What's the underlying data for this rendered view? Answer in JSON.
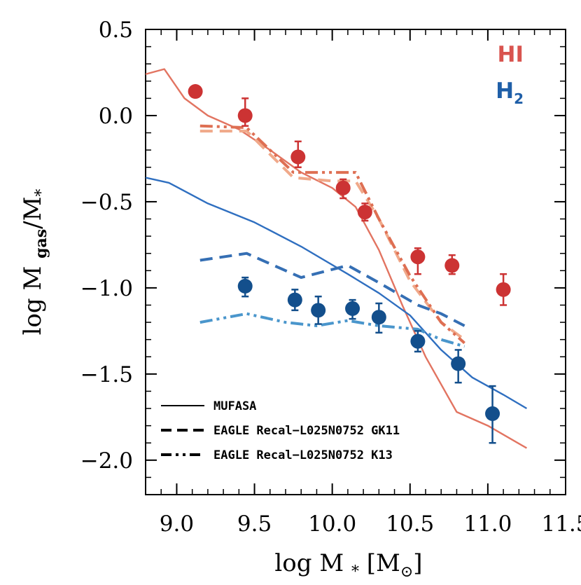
{
  "chart_data": {
    "type": "line",
    "xlabel": "log M<sub>*</sub> [M<sub>&#x2299;</sub>]",
    "xlabel_main": "log M",
    "xlabel_sub": "*",
    "xlabel_unit_open": "[M",
    "xlabel_unit_sub": "⊙",
    "xlabel_unit_close": "]",
    "ylabel_main": "log M",
    "ylabel_sub": "gas",
    "ylabel_tail": "/M",
    "ylabel_tail_sub": "*",
    "xlim": [
      8.8,
      11.5
    ],
    "ylim": [
      -2.2,
      0.5
    ],
    "x_ticks": [
      9.0,
      9.5,
      10.0,
      10.5,
      11.0,
      11.5
    ],
    "x_tick_labels": [
      "9.0",
      "9.5",
      "10.0",
      "10.5",
      "11.0",
      "11.5"
    ],
    "y_ticks": [
      0.5,
      0.0,
      -0.5,
      -1.0,
      -1.5,
      -2.0
    ],
    "y_tick_labels": [
      "0.5",
      "0.0",
      "−0.5",
      "−1.0",
      "−1.5",
      "−2.0"
    ],
    "grid": false,
    "legend_position": "bottom-left",
    "legend": [
      {
        "style": "solid",
        "label": "MUFASA"
      },
      {
        "style": "dashed",
        "label": "EAGLE Recal−L025N0752 GK11"
      },
      {
        "style": "dash-dot-dot",
        "label": "EAGLE Recal−L025N0752 K13"
      }
    ],
    "species_labels": [
      {
        "main": "HI",
        "sub": "",
        "color": "#d9544f"
      },
      {
        "main": "H",
        "sub": "2",
        "color": "#1f5fa8"
      }
    ],
    "colors": {
      "hi_points": "#cc3333",
      "h2_points": "#134f8c",
      "hi_mufasa": "#e27461",
      "hi_gk11": "#f0a98a",
      "hi_k13": "#de6f53",
      "h2_mufasa": "#2f6fc0",
      "h2_gk11": "#356fb4",
      "h2_k13": "#4a96cc"
    },
    "series": [
      {
        "id": "hi_mufasa",
        "kind": "line",
        "style": "solid",
        "color": "#e27461",
        "width": 2.4,
        "x": [
          8.8,
          8.92,
          9.05,
          9.2,
          9.4,
          9.6,
          9.8,
          10.0,
          10.15,
          10.3,
          10.45,
          10.6,
          10.8,
          11.0,
          11.25
        ],
        "y": [
          0.24,
          0.27,
          0.1,
          0.0,
          -0.08,
          -0.2,
          -0.33,
          -0.42,
          -0.53,
          -0.78,
          -1.1,
          -1.4,
          -1.72,
          -1.8,
          -1.93
        ]
      },
      {
        "id": "h2_mufasa",
        "kind": "line",
        "style": "solid",
        "color": "#2f6fc0",
        "width": 2.4,
        "x": [
          8.8,
          8.95,
          9.2,
          9.5,
          9.8,
          10.1,
          10.3,
          10.5,
          10.7,
          10.9,
          11.1,
          11.25
        ],
        "y": [
          -0.36,
          -0.39,
          -0.51,
          -0.62,
          -0.76,
          -0.92,
          -1.03,
          -1.16,
          -1.36,
          -1.52,
          -1.62,
          -1.7
        ]
      },
      {
        "id": "hi_gk11",
        "kind": "line",
        "style": "dashed",
        "color": "#f0a98a",
        "width": 4,
        "x": [
          9.15,
          9.45,
          9.75,
          10.0,
          10.15,
          10.3,
          10.5,
          10.7,
          10.85
        ],
        "y": [
          -0.09,
          -0.09,
          -0.36,
          -0.38,
          -0.38,
          -0.6,
          -0.96,
          -1.2,
          -1.3
        ]
      },
      {
        "id": "hi_k13",
        "kind": "line",
        "style": "dash-dot-dot",
        "color": "#de6f53",
        "width": 4,
        "x": [
          9.15,
          9.45,
          9.75,
          10.0,
          10.15,
          10.3,
          10.5,
          10.7,
          10.85
        ],
        "y": [
          -0.06,
          -0.07,
          -0.33,
          -0.33,
          -0.33,
          -0.6,
          -0.93,
          -1.2,
          -1.32
        ]
      },
      {
        "id": "h2_gk11",
        "kind": "line",
        "style": "dashed",
        "color": "#356fb4",
        "width": 4,
        "x": [
          9.15,
          9.45,
          9.8,
          10.1,
          10.3,
          10.55,
          10.7,
          10.85
        ],
        "y": [
          -0.84,
          -0.8,
          -0.94,
          -0.87,
          -0.97,
          -1.1,
          -1.15,
          -1.22
        ]
      },
      {
        "id": "h2_k13",
        "kind": "line",
        "style": "dash-dot-dot",
        "color": "#4a96cc",
        "width": 4,
        "x": [
          9.15,
          9.45,
          9.7,
          9.9,
          10.1,
          10.3,
          10.55,
          10.7,
          10.85
        ],
        "y": [
          -1.2,
          -1.15,
          -1.2,
          -1.22,
          -1.19,
          -1.22,
          -1.24,
          -1.3,
          -1.34
        ]
      },
      {
        "id": "hi_points",
        "kind": "points",
        "color": "#cc3333",
        "x": [
          9.12,
          9.44,
          9.78,
          10.07,
          10.21,
          10.55,
          10.77,
          11.1
        ],
        "y": [
          0.14,
          0.0,
          -0.24,
          -0.42,
          -0.56,
          -0.82,
          -0.87,
          -1.01
        ],
        "yerr_low": [
          0.03,
          0.06,
          0.06,
          0.06,
          0.05,
          0.1,
          0.05,
          0.09
        ],
        "yerr_high": [
          0.03,
          0.1,
          0.09,
          0.05,
          0.05,
          0.05,
          0.06,
          0.09
        ]
      },
      {
        "id": "h2_points",
        "kind": "points",
        "color": "#134f8c",
        "x": [
          9.44,
          9.76,
          9.91,
          10.13,
          10.3,
          10.55,
          10.81,
          11.03
        ],
        "y": [
          -0.99,
          -1.07,
          -1.13,
          -1.12,
          -1.17,
          -1.31,
          -1.44,
          -1.73
        ],
        "yerr_low": [
          0.06,
          0.06,
          0.08,
          0.06,
          0.09,
          0.06,
          0.11,
          0.17
        ],
        "yerr_high": [
          0.05,
          0.06,
          0.08,
          0.05,
          0.08,
          0.06,
          0.08,
          0.16
        ]
      }
    ]
  }
}
